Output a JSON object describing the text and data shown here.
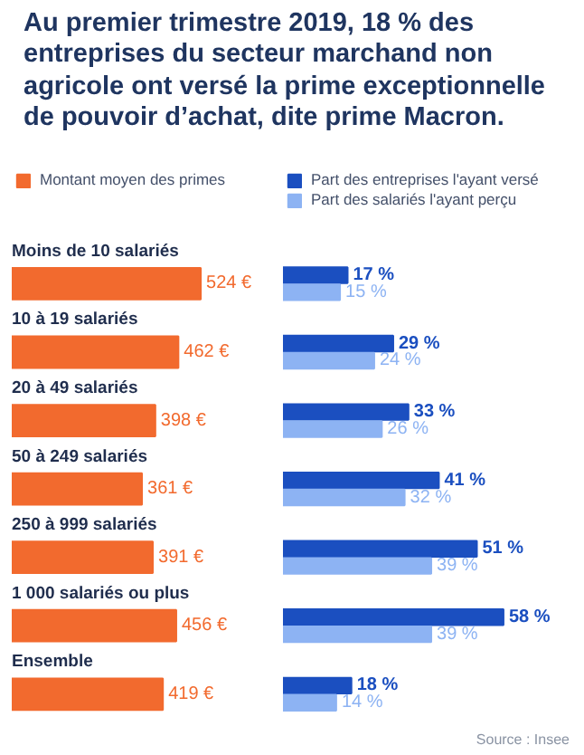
{
  "chart_data": [
    {
      "type": "bar",
      "orientation": "horizontal",
      "title": "Au premier trimestre 2019, 18 % des entreprises du secteur marchand non agricole ont versé la prime exceptionnelle de pouvoir d’achat, dite prime Macron.",
      "categories": [
        "Moins de 10 salariés",
        "10 à 19 salariés",
        "20 à 49 salariés",
        "50 à 249 salariés",
        "250 à 999 salariés",
        "1 000 salariés ou plus",
        "Ensemble"
      ],
      "legend": "top",
      "series": [
        {
          "name": "Montant moyen des primes",
          "color": "#f26a2e",
          "values": [
            524,
            462,
            398,
            361,
            391,
            456,
            419
          ],
          "value_labels": [
            "524 €",
            "462 €",
            "398 €",
            "361 €",
            "391 €",
            "456 €",
            "419 €"
          ]
        }
      ]
    },
    {
      "type": "bar",
      "orientation": "horizontal",
      "categories": [
        null,
        null,
        null,
        null,
        null,
        null,
        null
      ],
      "legend": "top right",
      "annotations": [
        "Source : Insee"
      ],
      "series": [
        {
          "name": "Part des entreprises l'ayant versé",
          "color": "#1b4fc0",
          "values": [
            17,
            29,
            33,
            41,
            51,
            58,
            18
          ],
          "value_labels": [
            "17 %",
            "29 %",
            "33 %",
            "41 %",
            "51 %",
            "58 %",
            "18 %"
          ]
        },
        {
          "name": "Part des salariés l'ayant perçu",
          "color": "#8db3f3",
          "values": [
            15,
            24,
            26,
            32,
            39,
            39,
            14
          ],
          "value_labels": [
            "15 %",
            "24 %",
            "26 %",
            "32 %",
            "39 %",
            "39 %",
            "14 %"
          ]
        }
      ]
    }
  ]
}
